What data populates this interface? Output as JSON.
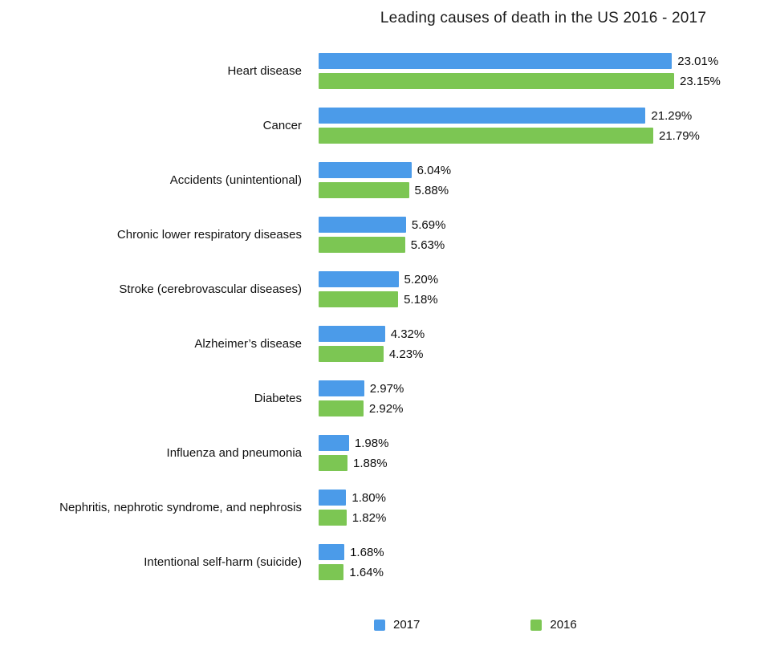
{
  "chart_data": {
    "type": "bar",
    "orientation": "horizontal",
    "title": "Leading causes of death in the US 2016 - 2017",
    "categories": [
      "Heart disease",
      "Cancer",
      "Accidents (unintentional)",
      "Chronic lower respiratory diseases",
      "Stroke (cerebrovascular diseases)",
      "Alzheimer’s disease",
      "Diabetes",
      "Influenza and pneumonia",
      "Nephritis, nephrotic syndrome, and nephrosis",
      "Intentional self-harm (suicide)"
    ],
    "series": [
      {
        "name": "2017",
        "color": "#4B9BE9",
        "values": [
          23.01,
          21.29,
          6.04,
          5.69,
          5.2,
          4.32,
          2.97,
          1.98,
          1.8,
          1.68
        ],
        "labels": [
          "23.01%",
          "21.29%",
          "6.04%",
          "5.69%",
          "5.20%",
          "4.32%",
          "2.97%",
          "1.98%",
          "1.80%",
          "1.68%"
        ]
      },
      {
        "name": "2016",
        "color": "#7CC653",
        "values": [
          23.15,
          21.79,
          5.88,
          5.63,
          5.18,
          4.23,
          2.92,
          1.88,
          1.82,
          1.64
        ],
        "labels": [
          "23.15%",
          "21.79%",
          "5.88%",
          "5.63%",
          "5.18%",
          "4.23%",
          "2.92%",
          "1.88%",
          "1.82%",
          "1.64%"
        ]
      }
    ],
    "xlim": [
      0,
      23.15
    ],
    "grid": false,
    "legend_position": "bottom",
    "value_labels": "outside-end"
  }
}
